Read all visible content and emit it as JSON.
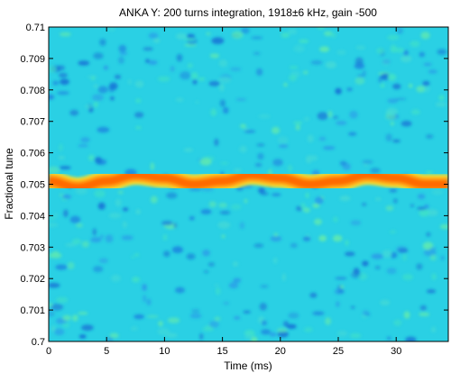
{
  "chart_data": {
    "type": "heatmap",
    "title": "ANKA Y: 200 turns integration, 1918±6 kHz, gain -500",
    "xlabel": "Time (ms)",
    "ylabel": "Fractional tune",
    "xlim": [
      0,
      34.5
    ],
    "ylim": [
      0.7,
      0.71
    ],
    "xticks": [
      0,
      5,
      10,
      15,
      20,
      25,
      30
    ],
    "yticks": [
      0.7,
      0.701,
      0.702,
      0.703,
      0.704,
      0.705,
      0.706,
      0.707,
      0.708,
      0.709,
      0.71
    ],
    "ytick_labels": [
      "0.7",
      "0.701",
      "0.702",
      "0.703",
      "0.704",
      "0.705",
      "0.706",
      "0.707",
      "0.708",
      "0.709",
      "0.71"
    ],
    "colormap": "jet",
    "background_level": "low (noise)",
    "peak_trace": {
      "description": "oscillating tune line",
      "x": [
        0,
        2.5,
        5,
        7.5,
        10,
        12.5,
        15,
        17.5,
        20,
        22.5,
        25,
        27.5,
        30,
        32.5,
        34.5
      ],
      "y": [
        0.7051,
        0.7049,
        0.7051,
        0.7053,
        0.7052,
        0.705,
        0.7051,
        0.7053,
        0.7052,
        0.705,
        0.7051,
        0.7053,
        0.7052,
        0.705,
        0.705
      ]
    }
  }
}
